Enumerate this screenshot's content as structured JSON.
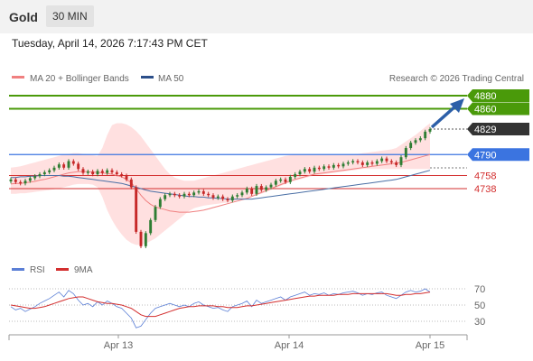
{
  "header": {
    "title": "Gold",
    "timeframe": "30 MIN"
  },
  "datetime": "Tuesday, April 14, 2026 7:17:43 PM CET",
  "legend": {
    "ma20": "MA 20 + Bollinger Bands",
    "ma50": "MA 50",
    "copyright": "Research © 2026 Trading Central"
  },
  "rsi_legend": {
    "rsi": "RSI",
    "ma9": "9MA"
  },
  "colors": {
    "up": "#2e7d32",
    "down": "#c62828",
    "resistance": "#4a9a0a",
    "current": "#333333",
    "pivot": "#3b74e0",
    "support": "#d32f2f",
    "bollinger": "#ffd3d3",
    "ma20": "#f08080",
    "ma50": "#4a6fa5",
    "arrow": "#2c5fa8"
  },
  "chart_data": [
    {
      "type": "candlestick",
      "ylim": [
        4620,
        4900
      ],
      "x_ticks": [
        "Apr 13",
        "Apr 14",
        "Apr 15"
      ],
      "levels": [
        {
          "label": "4880",
          "value": 4880,
          "kind": "resistance"
        },
        {
          "label": "4860",
          "value": 4860,
          "kind": "resistance"
        },
        {
          "label": "4829",
          "value": 4829,
          "kind": "current"
        },
        {
          "label": "4790",
          "value": 4790,
          "kind": "pivot"
        },
        {
          "label": "4758",
          "value": 4758,
          "kind": "support"
        },
        {
          "label": "4738",
          "value": 4738,
          "kind": "support"
        }
      ],
      "close": [
        4752,
        4748,
        4746,
        4750,
        4754,
        4757,
        4760,
        4763,
        4766,
        4770,
        4775,
        4770,
        4780,
        4776,
        4768,
        4762,
        4764,
        4760,
        4765,
        4762,
        4766,
        4763,
        4760,
        4758,
        4752,
        4740,
        4672,
        4650,
        4670,
        4690,
        4710,
        4722,
        4728,
        4730,
        4728,
        4726,
        4730,
        4728,
        4732,
        4734,
        4730,
        4728,
        4724,
        4726,
        4722,
        4720,
        4726,
        4728,
        4732,
        4738,
        4730,
        4742,
        4736,
        4740,
        4744,
        4750,
        4752,
        4748,
        4756,
        4760,
        4764,
        4768,
        4764,
        4770,
        4768,
        4772,
        4770,
        4774,
        4772,
        4776,
        4778,
        4780,
        4778,
        4774,
        4778,
        4776,
        4780,
        4784,
        4780,
        4778,
        4774,
        4786,
        4800,
        4808,
        4812,
        4815,
        4825,
        4829
      ],
      "ma20": [
        4745,
        4746,
        4746,
        4747,
        4748,
        4749,
        4751,
        4752,
        4754,
        4756,
        4758,
        4760,
        4762,
        4763,
        4764,
        4764,
        4764,
        4763,
        4763,
        4762,
        4761,
        4760,
        4758,
        4756,
        4752,
        4747,
        4738,
        4728,
        4720,
        4714,
        4710,
        4708,
        4706,
        4704,
        4703,
        4702,
        4702,
        4702,
        4703,
        4704,
        4705,
        4707,
        4709,
        4711,
        4713,
        4715,
        4717,
        4719,
        4721,
        4723,
        4726,
        4729,
        4732,
        4735,
        4738,
        4741,
        4744,
        4747,
        4750,
        4752,
        4754,
        4756,
        4758,
        4760,
        4761,
        4762,
        4763,
        4764,
        4765,
        4766,
        4767,
        4768,
        4769,
        4770,
        4771,
        4772,
        4773,
        4774,
        4775,
        4776,
        4777,
        4778,
        4780,
        4782,
        4784,
        4786,
        4788,
        4790
      ],
      "bb_upper": [
        4770,
        4771,
        4772,
        4774,
        4776,
        4778,
        4780,
        4782,
        4784,
        4786,
        4788,
        4790,
        4791,
        4792,
        4792,
        4791,
        4790,
        4789,
        4788,
        4800,
        4820,
        4835,
        4838,
        4838,
        4836,
        4832,
        4826,
        4818,
        4808,
        4798,
        4788,
        4778,
        4768,
        4760,
        4755,
        4752,
        4750,
        4750,
        4750,
        4752,
        4754,
        4756,
        4758,
        4760,
        4762,
        4764,
        4766,
        4768,
        4770,
        4772,
        4774,
        4776,
        4778,
        4780,
        4782,
        4784,
        4786,
        4788,
        4789,
        4790,
        4790,
        4790,
        4790,
        4790,
        4790,
        4790,
        4790,
        4790,
        4790,
        4790,
        4790,
        4790,
        4791,
        4792,
        4793,
        4794,
        4795,
        4796,
        4797,
        4798,
        4800,
        4805,
        4810,
        4815,
        4820,
        4826,
        4832,
        4838
      ],
      "bb_lower": [
        4730,
        4730,
        4731,
        4731,
        4732,
        4733,
        4734,
        4735,
        4736,
        4737,
        4738,
        4740,
        4742,
        4744,
        4745,
        4745,
        4745,
        4744,
        4740,
        4725,
        4705,
        4690,
        4678,
        4668,
        4660,
        4655,
        4652,
        4652,
        4654,
        4658,
        4662,
        4668,
        4674,
        4680,
        4686,
        4692,
        4698,
        4704,
        4708,
        4710,
        4712,
        4713,
        4714,
        4715,
        4716,
        4717,
        4718,
        4720,
        4722,
        4724,
        4726,
        4728,
        4730,
        4733,
        4736,
        4739,
        4742,
        4745,
        4748,
        4750,
        4752,
        4754,
        4756,
        4758,
        4759,
        4760,
        4761,
        4762,
        4763,
        4764,
        4765,
        4766,
        4767,
        4768,
        4768,
        4768,
        4768,
        4768,
        4768,
        4768,
        4768,
        4768,
        4768,
        4768,
        4768,
        4768,
        4768,
        4768
      ],
      "ma50": [
        4755,
        4755,
        4756,
        4756,
        4757,
        4757,
        4758,
        4758,
        4758,
        4758,
        4758,
        4757,
        4757,
        4756,
        4755,
        4754,
        4753,
        4752,
        4751,
        4750,
        4749,
        4748,
        4747,
        4746,
        4744,
        4742,
        4740,
        4738,
        4736,
        4734,
        4733,
        4732,
        4731,
        4730,
        4729,
        4728,
        4727,
        4726,
        4726,
        4725,
        4725,
        4724,
        4724,
        4723,
        4723,
        4722,
        4722,
        4722,
        4722,
        4722,
        4722,
        4723,
        4724,
        4725,
        4726,
        4727,
        4728,
        4729,
        4730,
        4731,
        4732,
        4733,
        4734,
        4735,
        4736,
        4737,
        4738,
        4739,
        4740,
        4741,
        4742,
        4743,
        4744,
        4745,
        4746,
        4747,
        4748,
        4749,
        4750,
        4751,
        4752,
        4754,
        4756,
        4758,
        4760,
        4762,
        4764,
        4766
      ]
    },
    {
      "type": "line",
      "ylim": [
        20,
        80
      ],
      "y_ticks": [
        "70",
        "50",
        "30"
      ],
      "series": [
        {
          "name": "RSI",
          "values": [
            48,
            44,
            46,
            42,
            45,
            48,
            52,
            55,
            58,
            62,
            66,
            60,
            68,
            64,
            56,
            50,
            52,
            48,
            54,
            50,
            55,
            52,
            48,
            46,
            40,
            34,
            22,
            24,
            32,
            40,
            46,
            48,
            50,
            52,
            50,
            48,
            50,
            48,
            52,
            54,
            50,
            48,
            46,
            47,
            44,
            42,
            48,
            50,
            52,
            55,
            48,
            56,
            52,
            54,
            56,
            58,
            60,
            56,
            60,
            62,
            64,
            66,
            62,
            64,
            63,
            65,
            62,
            64,
            63,
            65,
            66,
            67,
            65,
            62,
            64,
            63,
            65,
            66,
            62,
            60,
            58,
            62,
            66,
            68,
            66,
            67,
            70,
            66
          ]
        },
        {
          "name": "9MA",
          "values": [
            50,
            49,
            48,
            47,
            46,
            46,
            47,
            48,
            50,
            52,
            54,
            56,
            58,
            59,
            60,
            60,
            58,
            56,
            54,
            53,
            52,
            52,
            51,
            50,
            48,
            46,
            42,
            38,
            36,
            36,
            36,
            38,
            40,
            42,
            44,
            46,
            47,
            48,
            48,
            49,
            49,
            49,
            49,
            48,
            48,
            47,
            47,
            47,
            48,
            49,
            49,
            50,
            51,
            52,
            53,
            54,
            55,
            56,
            57,
            58,
            59,
            60,
            61,
            61,
            62,
            62,
            62,
            62,
            63,
            63,
            63,
            64,
            64,
            64,
            64,
            64,
            64,
            64,
            64,
            63,
            62,
            62,
            63,
            63,
            64,
            64,
            65,
            66
          ]
        }
      ]
    }
  ]
}
